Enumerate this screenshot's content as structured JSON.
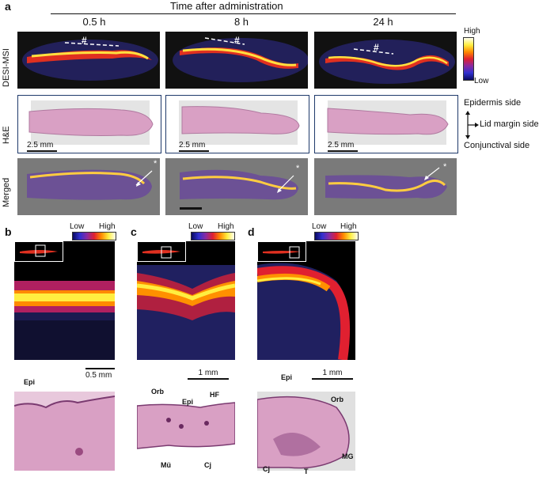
{
  "panel_a": {
    "letter": "a",
    "header": "Time after administration",
    "columns": [
      "0.5 h",
      "8 h",
      "24 h"
    ],
    "rows": [
      "DESI-MSI",
      "H&E",
      "Merged"
    ],
    "hash_marker": "#",
    "star_marker": "*",
    "scale_labels": [
      "2.5 mm",
      "2.5 mm",
      "2.5 mm"
    ],
    "colorbar": {
      "high": "High",
      "low": "Low"
    },
    "orientation": {
      "top": "Epidermis side",
      "right": "Lid margin side",
      "bottom": "Conjunctival side"
    }
  },
  "panel_b": {
    "letter": "b",
    "cbar_low": "Low",
    "cbar_high": "High",
    "scale": "0.5 mm",
    "labels": [
      "Epi"
    ]
  },
  "panel_c": {
    "letter": "c",
    "cbar_low": "Low",
    "cbar_high": "High",
    "scale": "1 mm",
    "labels": [
      "Orb",
      "Epi",
      "HF",
      "Mü",
      "Cj"
    ]
  },
  "panel_d": {
    "letter": "d",
    "cbar_low": "Low",
    "cbar_high": "High",
    "scale": "1 mm",
    "labels": [
      "Epi",
      "Orb",
      "MG",
      "Cj",
      "T"
    ]
  },
  "colors": {
    "frame": "#1f3a6b",
    "hot_high": "#ffee40",
    "hot_mid": "#e02030",
    "hot_low": "#3030d0",
    "he_pink": "#d9a0c4"
  }
}
